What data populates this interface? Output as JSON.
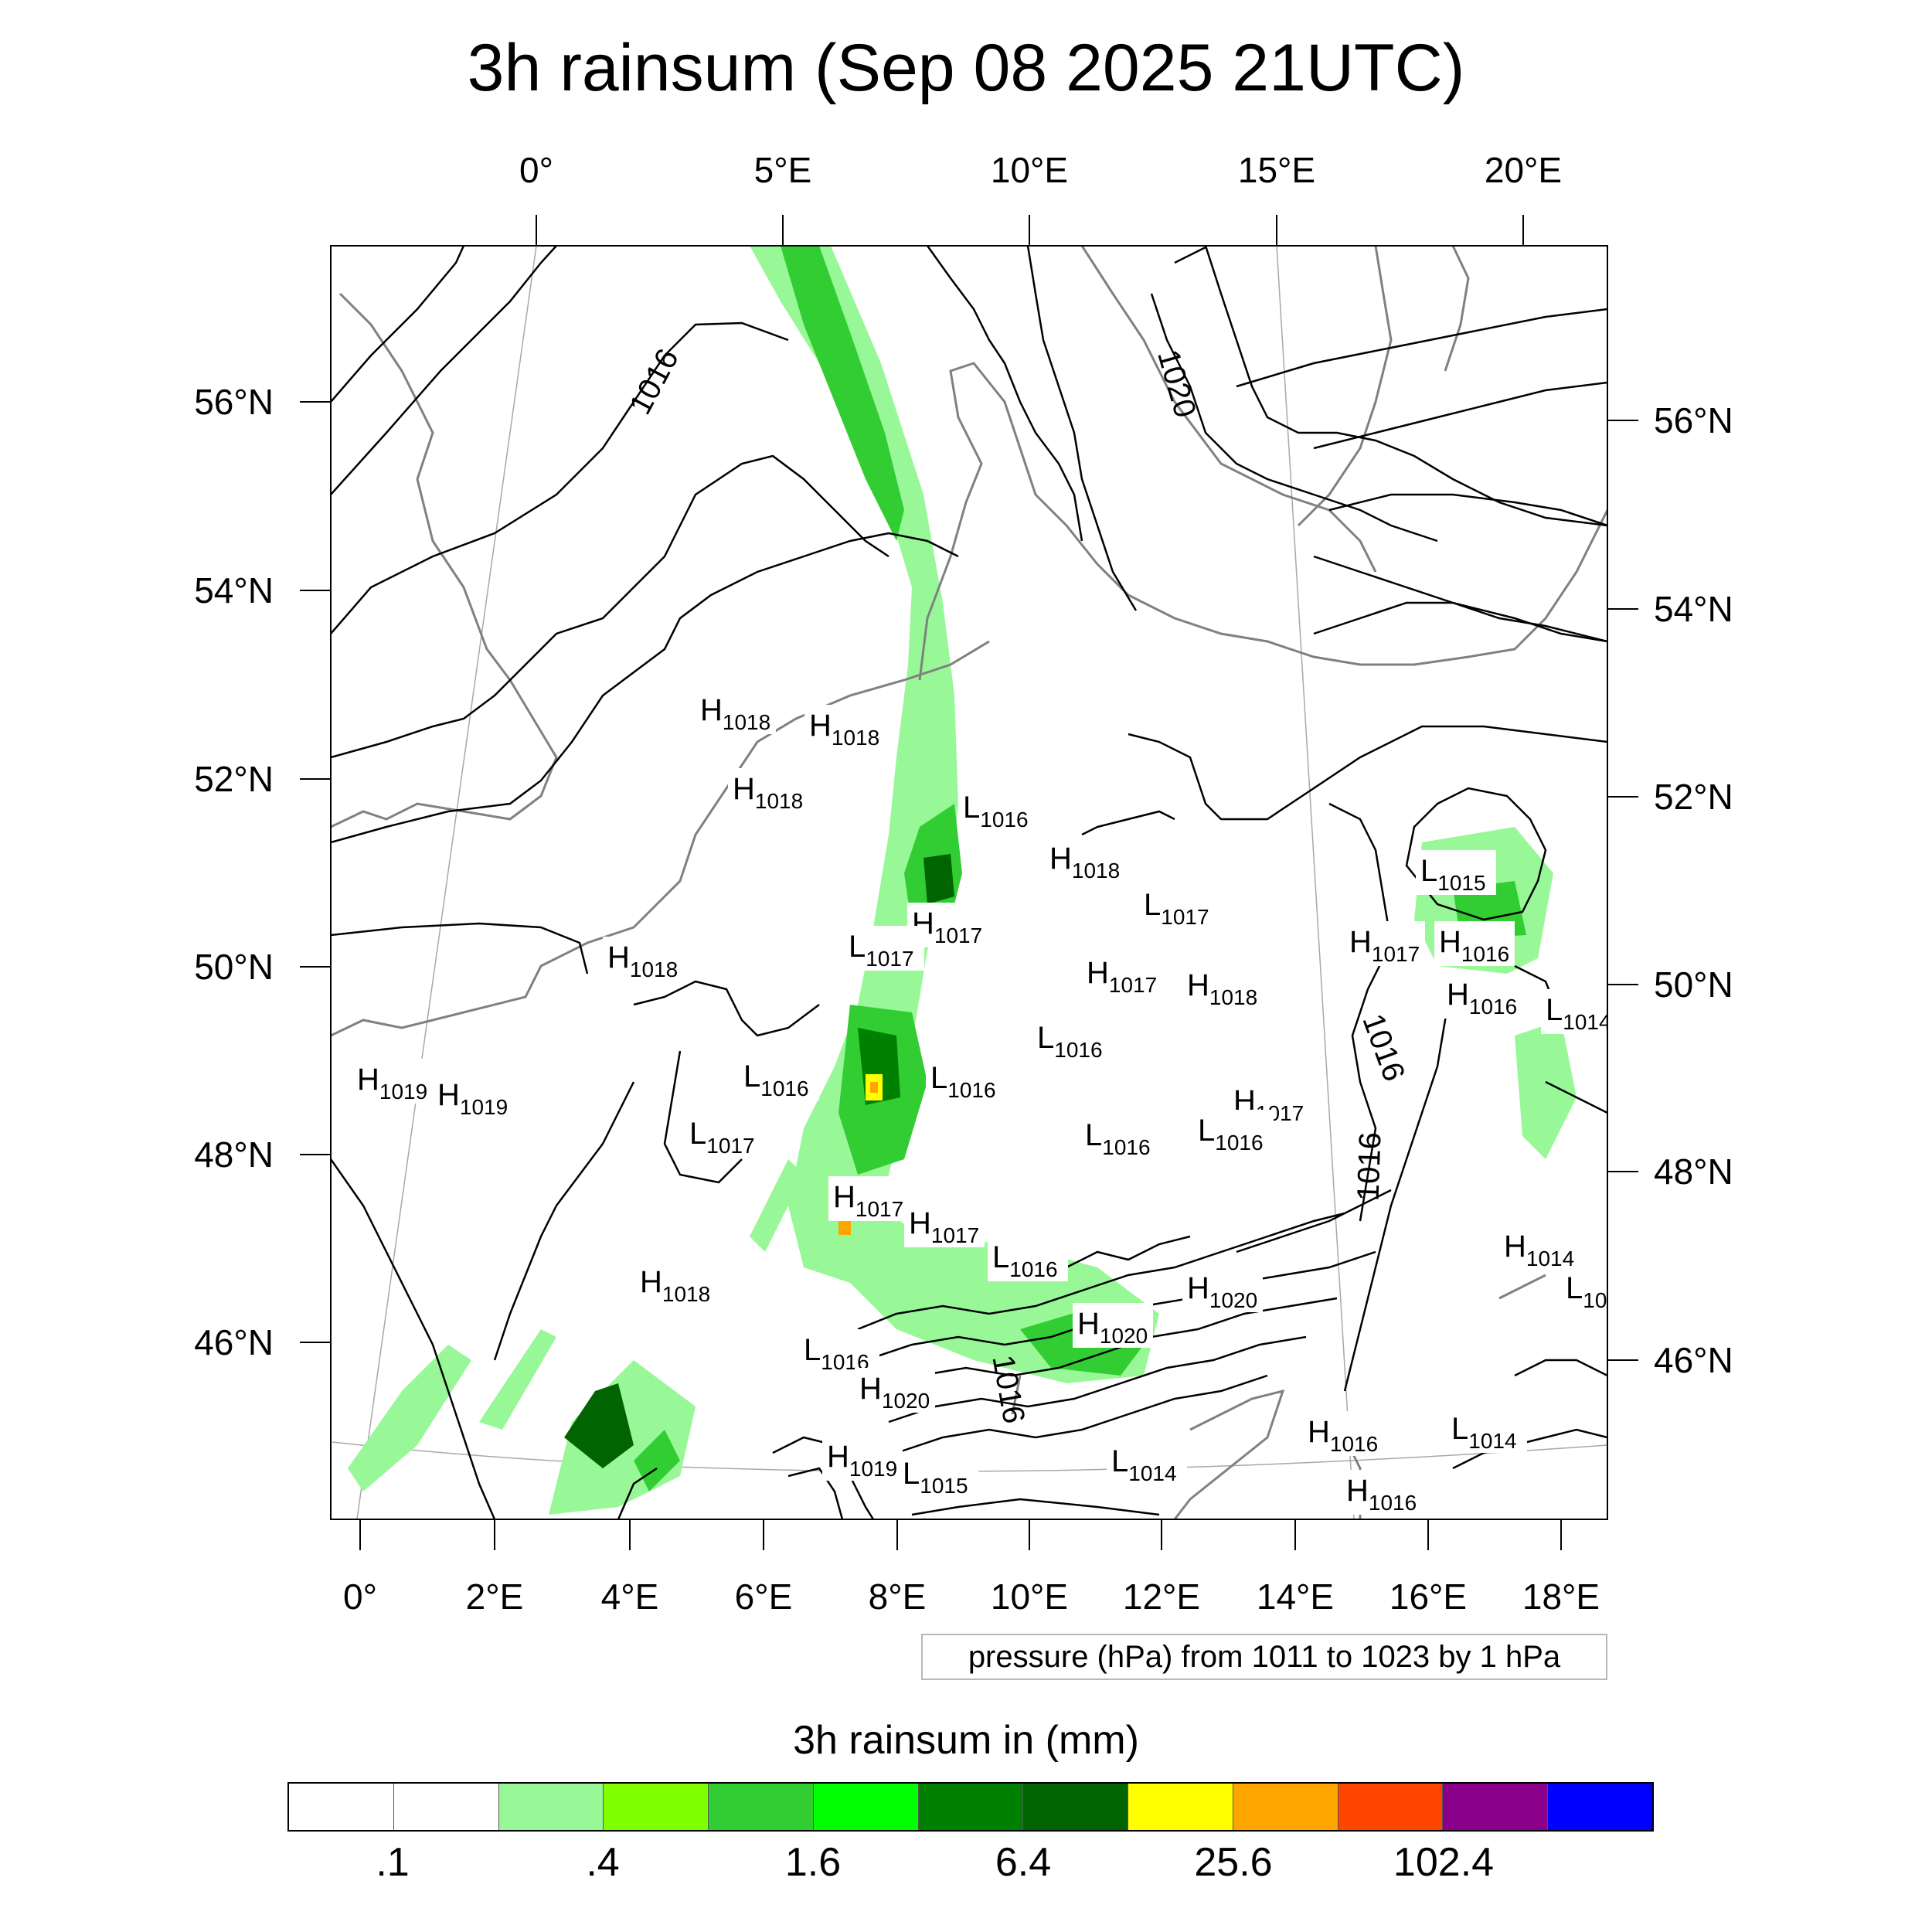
{
  "title": "3h rainsum (Sep 08 2025 21UTC)",
  "map": {
    "top_lon_labels": [
      "0°",
      "5°E",
      "10°E",
      "15°E",
      "20°E"
    ],
    "bottom_lon_labels": [
      "0°",
      "2°E",
      "4°E",
      "6°E",
      "8°E",
      "10°E",
      "12°E",
      "14°E",
      "16°E",
      "18°E"
    ],
    "left_lat_labels": [
      "56°N",
      "54°N",
      "52°N",
      "50°N",
      "48°N",
      "46°N"
    ],
    "right_lat_labels": [
      "56°N",
      "54°N",
      "52°N",
      "50°N",
      "48°N",
      "46°N"
    ],
    "isobar_labels": [
      "1016",
      "1020",
      "1016",
      "1016",
      "1016"
    ],
    "pressure_centers": [
      {
        "type": "H",
        "value": "1018"
      },
      {
        "type": "H",
        "value": "1018"
      },
      {
        "type": "H",
        "value": "1018"
      },
      {
        "type": "L",
        "value": "1016"
      },
      {
        "type": "H",
        "value": "1018"
      },
      {
        "type": "L",
        "value": "1017"
      },
      {
        "type": "H",
        "value": "1017"
      },
      {
        "type": "L",
        "value": "1017"
      },
      {
        "type": "H",
        "value": "1018"
      },
      {
        "type": "H",
        "value": "1017"
      },
      {
        "type": "H",
        "value": "1018"
      },
      {
        "type": "L",
        "value": "1015"
      },
      {
        "type": "H",
        "value": "1017"
      },
      {
        "type": "H",
        "value": "1016"
      },
      {
        "type": "H",
        "value": "1016"
      },
      {
        "type": "L",
        "value": "1014"
      },
      {
        "type": "L",
        "value": "1016"
      },
      {
        "type": "L",
        "value": "1016"
      },
      {
        "type": "L",
        "value": "1016"
      },
      {
        "type": "H",
        "value": "1019"
      },
      {
        "type": "H",
        "value": "1019"
      },
      {
        "type": "L",
        "value": "1017"
      },
      {
        "type": "H",
        "value": "1017"
      },
      {
        "type": "L",
        "value": "1016"
      },
      {
        "type": "L",
        "value": "1016"
      },
      {
        "type": "H",
        "value": "1017"
      },
      {
        "type": "H",
        "value": "1017"
      },
      {
        "type": "L",
        "value": "1016"
      },
      {
        "type": "H",
        "value": "1018"
      },
      {
        "type": "H",
        "value": "1020"
      },
      {
        "type": "H",
        "value": "1020"
      },
      {
        "type": "H",
        "value": "1014"
      },
      {
        "type": "L",
        "value": "10"
      },
      {
        "type": "L",
        "value": "1016"
      },
      {
        "type": "H",
        "value": "1020"
      },
      {
        "type": "H",
        "value": "1019"
      },
      {
        "type": "L",
        "value": "1015"
      },
      {
        "type": "L",
        "value": "1014"
      },
      {
        "type": "H",
        "value": "1016"
      },
      {
        "type": "L",
        "value": "1014"
      },
      {
        "type": "H",
        "value": "1016"
      }
    ]
  },
  "pressure_note": "pressure (hPa) from 1011 to 1023 by 1 hPa",
  "legend": {
    "title": "3h rainsum in (mm)",
    "colors": [
      "#ffffff",
      "#ffffff",
      "#98f898",
      "#80ff00",
      "#32cd32",
      "#00ff00",
      "#008000",
      "#006400",
      "#ffff00",
      "#ffa500",
      "#ff4500",
      "#8b008b",
      "#0000ff"
    ],
    "labels": [
      ".1",
      ".4",
      "1.6",
      "6.4",
      "25.6",
      "102.4"
    ]
  },
  "colors": {
    "isobar": "#000000",
    "coastline": "#808080",
    "rain_light": "#98f898",
    "rain_medium": "#32cd32",
    "rain_heavy": "#006400"
  }
}
